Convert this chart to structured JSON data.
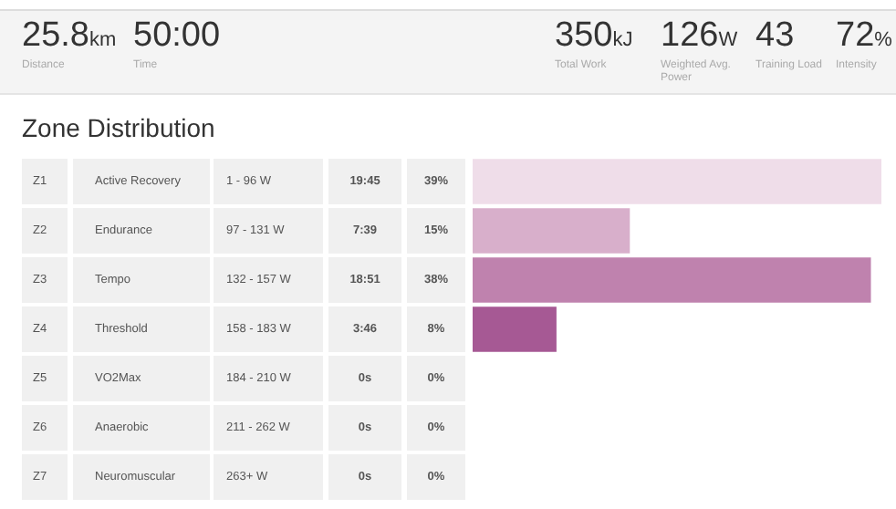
{
  "chart_data": {
    "type": "bar",
    "orientation": "horizontal",
    "title": "Zone Distribution",
    "categories": [
      "Active Recovery",
      "Endurance",
      "Tempo",
      "Threshold",
      "VO2Max",
      "Anaerobic",
      "Neuromuscular"
    ],
    "values": [
      39,
      15,
      38,
      8,
      0,
      0,
      0
    ],
    "value_labels": [
      "39%",
      "15%",
      "38%",
      "8%",
      "0%",
      "0%",
      "0%"
    ],
    "colors": [
      "#efdde9",
      "#d8afcb",
      "#bf82ae",
      "#a65994",
      "#9a4a88",
      "#8e3d7c",
      "#823070"
    ],
    "grid": false,
    "annotations": [
      "25.8km",
      "Distance",
      "50:00",
      "Time",
      "350kJ",
      "Total Work",
      "126W",
      "Weighted Avg. Power",
      "43",
      "Training Load",
      "72%",
      "Intensity",
      "Z1",
      "1 - 96 W",
      "19:45",
      "Z2",
      "97 - 131 W",
      "7:39",
      "Z3",
      "132 - 157 W",
      "18:51",
      "Z4",
      "158 - 183 W",
      "3:46",
      "Z5",
      "184 - 210 W",
      "0s",
      "Z6",
      "211 - 262 W",
      "0s",
      "Z7",
      "263+ W",
      "0s"
    ]
  }
}
